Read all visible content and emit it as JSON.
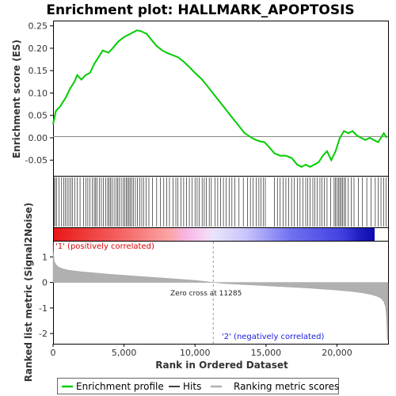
{
  "title": "Enrichment plot: HALLMARK_APOPTOSIS",
  "legend": {
    "items": [
      {
        "label": "Enrichment profile",
        "color": "#00cc00"
      },
      {
        "label": "Hits",
        "color": "#000000"
      },
      {
        "label": "Ranking metric scores",
        "color": "#b0b0b0"
      }
    ]
  },
  "annotations": {
    "positive": "'1' (positively correlated)",
    "negative": "'2' (negatively correlated)",
    "zero_cross": "Zero cross at 11285"
  },
  "chart_data": [
    {
      "type": "line",
      "name": "enrichment-profile",
      "ylabel": "Enrichment score (ES)",
      "xlim": [
        0,
        23600
      ],
      "ylim": [
        -0.085,
        0.26
      ],
      "yticks": [
        -0.05,
        0.0,
        0.05,
        0.1,
        0.15,
        0.2,
        0.25
      ],
      "ytick_labels": [
        "-0.05",
        "0.00",
        "0.05",
        "0.10",
        "0.15",
        "0.20",
        "0.25"
      ],
      "color": "#00cc00",
      "x": [
        0,
        200,
        500,
        900,
        1200,
        1500,
        1700,
        2000,
        2300,
        2600,
        2900,
        3200,
        3500,
        3900,
        4200,
        4600,
        5000,
        5300,
        5600,
        5900,
        6200,
        6600,
        6900,
        7300,
        7700,
        8000,
        8400,
        8800,
        9200,
        9600,
        10000,
        10500,
        11000,
        11500,
        12000,
        12500,
        13000,
        13500,
        14000,
        14300,
        14600,
        14900,
        15200,
        15600,
        16000,
        16400,
        16800,
        17200,
        17500,
        17800,
        18100,
        18400,
        18700,
        19000,
        19300,
        19600,
        19900,
        20200,
        20500,
        20800,
        21100,
        21400,
        21700,
        22000,
        22300,
        22600,
        22900,
        23100,
        23300,
        23500
      ],
      "y": [
        0.03,
        0.06,
        0.07,
        0.09,
        0.11,
        0.125,
        0.14,
        0.13,
        0.14,
        0.145,
        0.165,
        0.18,
        0.195,
        0.19,
        0.2,
        0.215,
        0.225,
        0.23,
        0.235,
        0.24,
        0.238,
        0.232,
        0.22,
        0.205,
        0.195,
        0.19,
        0.185,
        0.18,
        0.17,
        0.158,
        0.145,
        0.13,
        0.11,
        0.09,
        0.07,
        0.05,
        0.03,
        0.01,
        0.0,
        -0.005,
        -0.008,
        -0.01,
        -0.02,
        -0.035,
        -0.04,
        -0.04,
        -0.045,
        -0.06,
        -0.065,
        -0.06,
        -0.065,
        -0.06,
        -0.055,
        -0.04,
        -0.03,
        -0.05,
        -0.03,
        0.0,
        0.015,
        0.01,
        0.015,
        0.005,
        0.0,
        -0.005,
        0.0,
        -0.005,
        -0.01,
        0.0,
        0.01,
        0.0
      ]
    },
    {
      "type": "scatter",
      "name": "hits",
      "hit_positions": [
        60,
        140,
        260,
        420,
        600,
        750,
        880,
        1000,
        1120,
        1260,
        1380,
        1520,
        1700,
        1900,
        2150,
        2300,
        2450,
        2600,
        2750,
        2900,
        3000,
        3100,
        3250,
        3400,
        3550,
        3700,
        3850,
        3950,
        4050,
        4150,
        4300,
        4450,
        4550,
        4650,
        4800,
        4950,
        5050,
        5150,
        5250,
        5350,
        5450,
        5550,
        5650,
        5800,
        5950,
        6100,
        6250,
        6400,
        6550,
        6750,
        7000,
        7300,
        7550,
        7800,
        8000,
        8200,
        8450,
        8650,
        8800,
        9000,
        9200,
        9400,
        9600,
        9800,
        10000,
        10150,
        10300,
        10500,
        10650,
        10800,
        11000,
        11150,
        11400,
        11600,
        11800,
        12000,
        12200,
        12400,
        12600,
        12800,
        13100,
        13400,
        13700,
        13900,
        14100,
        14300,
        14500,
        14650,
        14800,
        14950,
        15600,
        15800,
        16000,
        16200,
        16400,
        16600,
        16800,
        17000,
        17200,
        17400,
        17600,
        17800,
        17950,
        18100,
        18300,
        18450,
        18600,
        18800,
        18950,
        19100,
        19300,
        19550,
        19800,
        19900,
        20000,
        20100,
        20200,
        20300,
        20400,
        20500,
        20600,
        20800,
        21000,
        21200,
        21500,
        21800,
        22100,
        22400,
        22700,
        22900,
        23100,
        23300,
        23450
      ]
    },
    {
      "type": "area",
      "name": "ranking-metric-scores",
      "ylabel": "Ranked list metric (Signal2Noise)",
      "xlabel": "Rank in Ordered Dataset",
      "xlim": [
        0,
        23600
      ],
      "ylim": [
        -2.4,
        1.6
      ],
      "yticks": [
        -2,
        -1,
        0,
        1
      ],
      "ytick_labels": [
        "-2",
        "-1",
        "0",
        "1"
      ],
      "xticks": [
        0,
        5000,
        10000,
        15000,
        20000
      ],
      "xtick_labels": [
        "0",
        "5,000",
        "10,000",
        "15,000",
        "20,000"
      ],
      "zero_cross": 11285,
      "color": "#b0b0b0",
      "x": [
        0,
        20,
        80,
        200,
        400,
        700,
        1000,
        1500,
        2000,
        3000,
        4000,
        5000,
        6000,
        7000,
        8000,
        9000,
        10000,
        11285,
        12000,
        13000,
        14000,
        15000,
        16000,
        17000,
        18000,
        19000,
        20000,
        21000,
        21800,
        22400,
        22800,
        23100,
        23300,
        23420,
        23500,
        23550,
        23600
      ],
      "y": [
        1.55,
        1.2,
        0.85,
        0.7,
        0.6,
        0.53,
        0.49,
        0.45,
        0.42,
        0.37,
        0.32,
        0.28,
        0.24,
        0.2,
        0.16,
        0.12,
        0.08,
        0.0,
        -0.04,
        -0.07,
        -0.1,
        -0.13,
        -0.16,
        -0.19,
        -0.22,
        -0.26,
        -0.3,
        -0.35,
        -0.41,
        -0.47,
        -0.54,
        -0.62,
        -0.75,
        -0.95,
        -1.4,
        -2.25,
        -2.25
      ]
    }
  ]
}
